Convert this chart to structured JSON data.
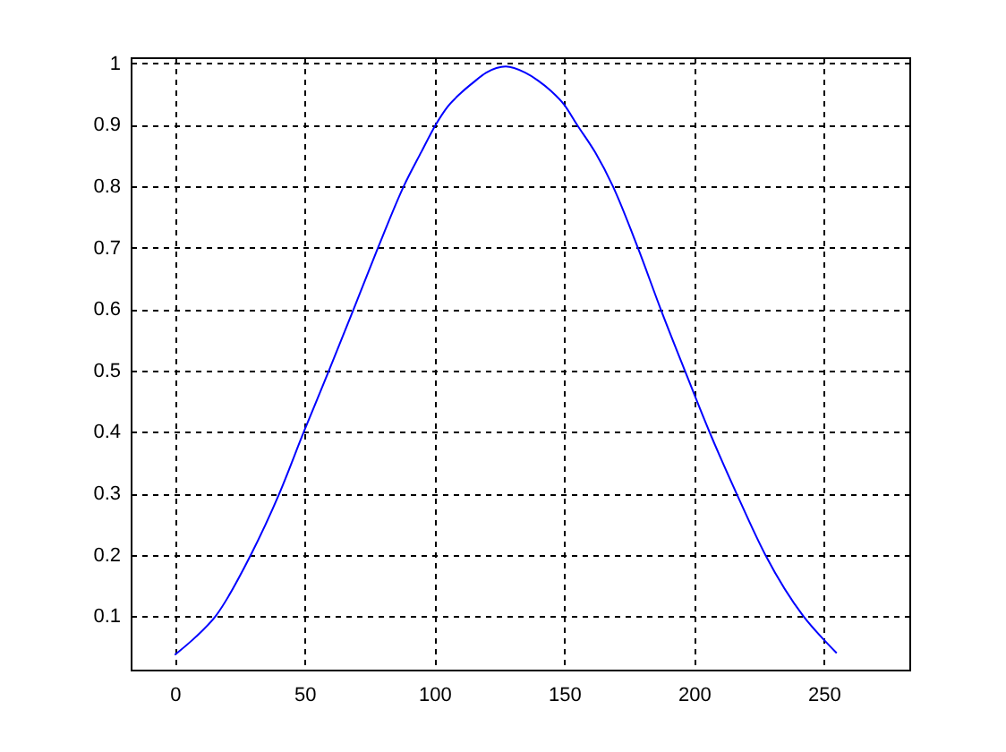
{
  "chart_data": {
    "type": "line",
    "x": [
      0,
      8,
      15.7,
      29.3,
      40.3,
      49.7,
      59.4,
      68.9,
      78.3,
      88.2,
      95,
      100.5,
      105,
      110,
      115,
      120,
      127.5,
      135,
      140,
      145,
      150,
      155,
      162,
      168.8,
      178.4,
      187.2,
      196.5,
      206,
      216.4,
      227.5,
      242.2,
      250,
      255
    ],
    "series": [
      {
        "color": "#0000ff",
        "values": [
          0.037,
          0.066,
          0.1,
          0.2,
          0.3,
          0.4,
          0.5,
          0.6,
          0.7,
          0.8,
          0.856,
          0.9,
          0.929,
          0.951,
          0.969,
          0.985,
          0.995,
          0.985,
          0.972,
          0.955,
          0.933,
          0.9,
          0.855,
          0.8,
          0.7,
          0.6,
          0.5,
          0.4,
          0.3,
          0.2,
          0.1,
          0.062,
          0.04
        ]
      }
    ],
    "xlim": [
      -17,
      283
    ],
    "ylim": [
      0.013,
      1.01
    ],
    "xticks": [
      0,
      50,
      100,
      150,
      200,
      250
    ],
    "yticks": [
      0.1,
      0.2,
      0.3,
      0.4,
      0.5,
      0.6,
      0.7,
      0.8,
      0.9,
      1
    ],
    "grid": true
  }
}
